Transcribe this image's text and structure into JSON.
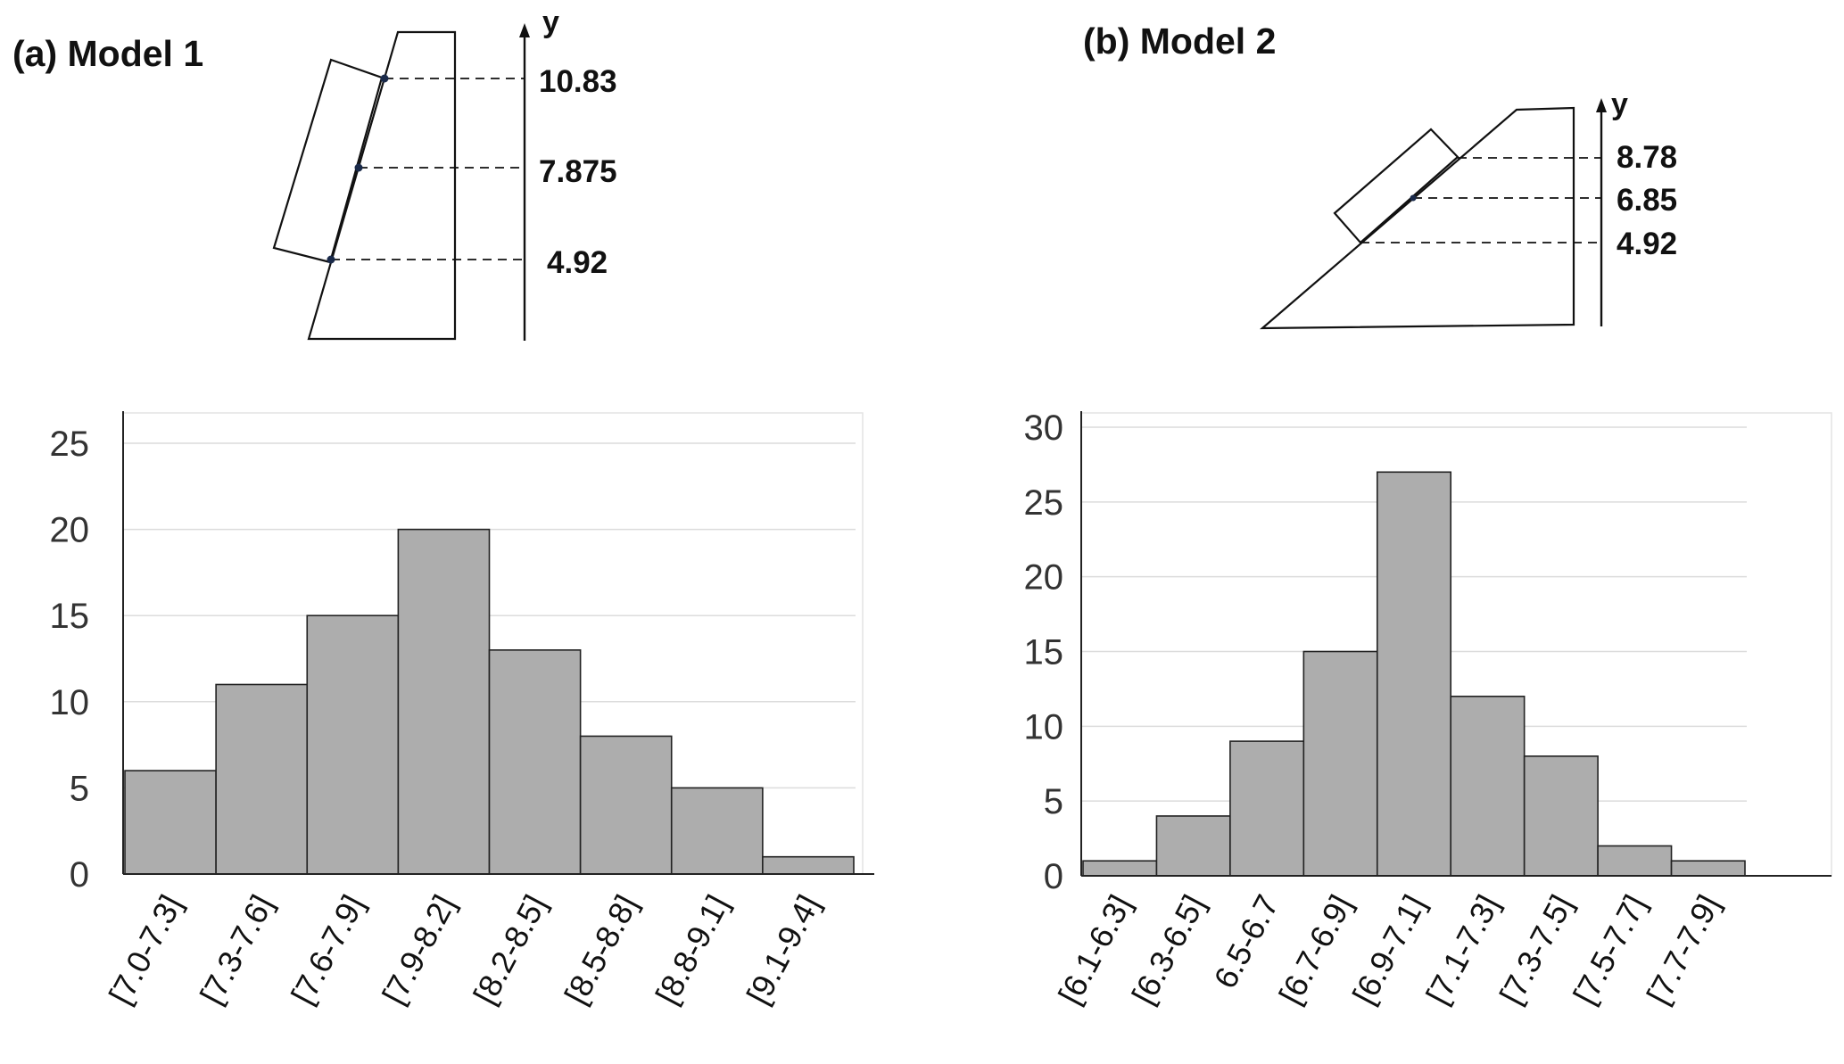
{
  "panels": {
    "a": {
      "title": "(a) Model 1",
      "axis_label": "y",
      "levels": [
        "10.83",
        "7.875",
        "4.92"
      ]
    },
    "b": {
      "title": "(b) Model 2",
      "axis_label": "y",
      "levels": [
        "8.78",
        "6.85",
        "4.92"
      ]
    }
  },
  "chart_data": [
    {
      "type": "bar",
      "title": "",
      "xlabel": "",
      "ylabel": "",
      "categories": [
        "[7.0-7.3]",
        "[7.3-7.6]",
        "[7.6-7.9]",
        "[7.9-8.2]",
        "[8.2-8.5]",
        "[8.5-8.8]",
        "[8.8-9.1]",
        "[9.1-9.4]"
      ],
      "values": [
        6,
        11,
        15,
        20,
        13,
        8,
        5,
        1
      ],
      "ylim": [
        0,
        25
      ],
      "yticks": [
        0,
        5,
        10,
        15,
        20,
        25
      ],
      "grid": true
    },
    {
      "type": "bar",
      "title": "",
      "xlabel": "",
      "ylabel": "",
      "categories": [
        "[6.1-6.3]",
        "[6.3-6.5]",
        "6.5-6.7",
        "[6.7-6.9]",
        "[6.9-7.1]",
        "[7.1-7.3]",
        "[7.3-7.5]",
        "[7.5-7.7]",
        "[7.7-7.9]"
      ],
      "values": [
        1,
        4,
        9,
        15,
        27,
        12,
        8,
        2,
        1
      ],
      "ylim": [
        0,
        30
      ],
      "yticks": [
        0,
        5,
        10,
        15,
        20,
        25,
        30
      ],
      "grid": true
    }
  ]
}
